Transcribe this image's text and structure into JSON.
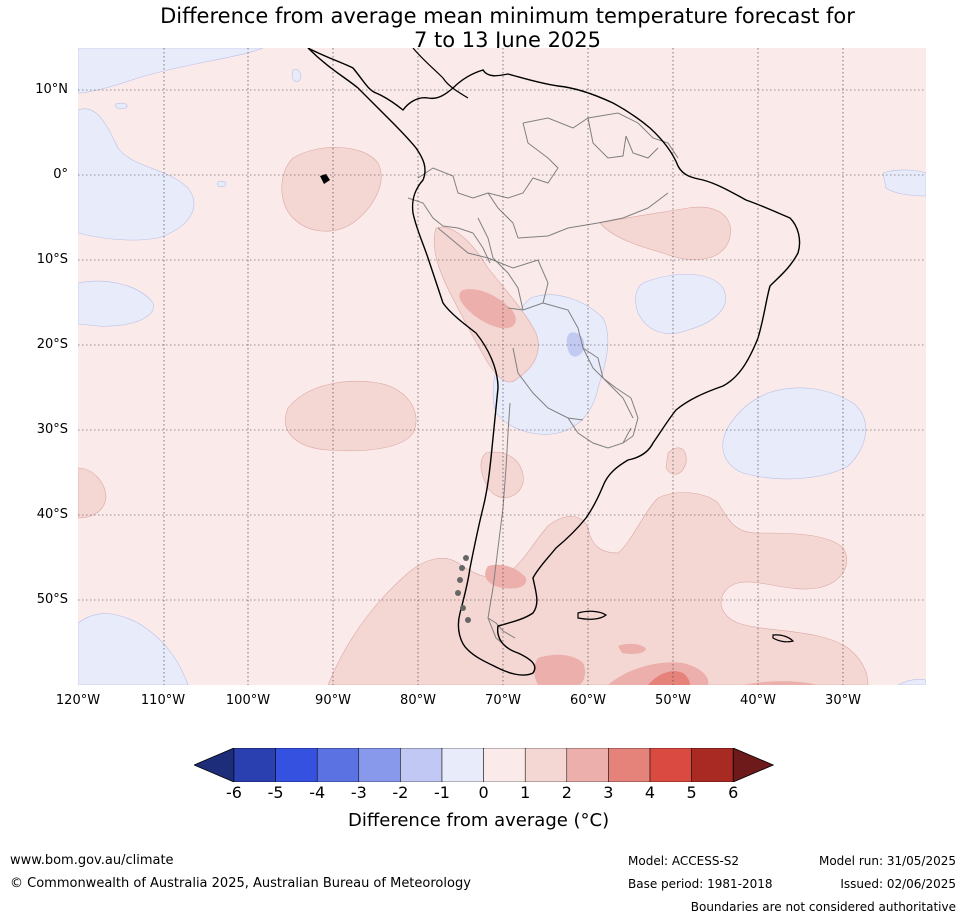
{
  "title": {
    "line1": "Difference from average mean minimum temperature forecast for",
    "line2": "7 to 13 June 2025"
  },
  "map": {
    "latitude_labels": [
      "10°N",
      "0°",
      "10°S",
      "20°S",
      "30°S",
      "40°S",
      "50°S"
    ],
    "longitude_labels": [
      "120°W",
      "110°W",
      "100°W",
      "90°W",
      "80°W",
      "70°W",
      "60°W",
      "50°W",
      "40°W",
      "30°W"
    ],
    "colors": {
      "ocean_background": "#fbeaea",
      "neg1_band": "#e8ebfa",
      "pos1_band": "#f4d6d3",
      "pos2_band": "#ecafab",
      "pos3_band": "#e5827a",
      "neg2_band": "#c3caf2",
      "coastline": "#000000",
      "borders": "#808080"
    }
  },
  "colorbar": {
    "ticks": [
      "-6",
      "-5",
      "-4",
      "-3",
      "-2",
      "-1",
      "0",
      "1",
      "2",
      "3",
      "4",
      "5",
      "6"
    ],
    "colors": [
      "#1e2d7a",
      "#2a3fb0",
      "#3451e0",
      "#5a72e2",
      "#8899ec",
      "#c0c8f3",
      "#e8ebfa",
      "#fbeaea",
      "#f4d6d3",
      "#ecafab",
      "#e5827a",
      "#da4a40",
      "#a92a22",
      "#6e1a1a"
    ],
    "label": "Difference from average (°C)"
  },
  "footer": {
    "website": "www.bom.gov.au/climate",
    "copyright": "© Commonwealth of Australia 2025, Australian Bureau of Meteorology",
    "model": "Model: ACCESS-S2",
    "base_period": "Base period: 1981-2018",
    "model_run": "Model run: 31/05/2025",
    "issued": "Issued: 02/06/2025",
    "disclaimer": "Boundaries are not considered authoritative"
  }
}
